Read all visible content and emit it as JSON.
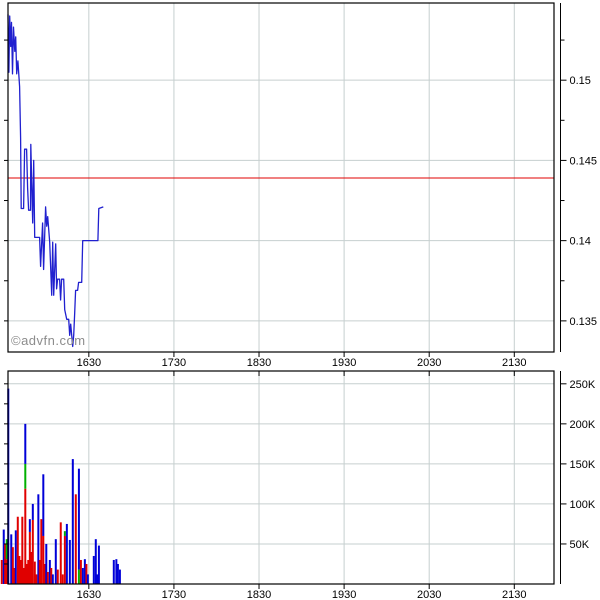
{
  "watermark": "©advfn.com",
  "colors": {
    "background": "#ffffff",
    "border": "#000000",
    "grid": "#c6cfcf",
    "price_line": "#2020cf",
    "prev_close_line": "#e00000",
    "buy": "#0000d8",
    "sell": "#e00000",
    "neutral": "#00b000",
    "watermark_color": "#8c8c8c",
    "label": "#000000"
  },
  "chart_data": [
    {
      "type": "line",
      "name": "intraday-price",
      "title": "",
      "legend": "off",
      "grid": "on",
      "x_axis": {
        "unit": "time-of-day",
        "tick_labels": [
          "1630",
          "1730",
          "1830",
          "1930",
          "2030",
          "2130"
        ],
        "tick_minutes": [
          990,
          1050,
          1110,
          1170,
          1230,
          1290
        ],
        "range_minutes": [
          933,
          1318
        ]
      },
      "y_axis": {
        "side": "right",
        "tick_labels": [
          "0.15",
          "0.145",
          "0.14",
          "0.135"
        ],
        "tick_values": [
          0.15,
          0.145,
          0.14,
          0.135
        ],
        "minor_tick_values": [
          0.1525,
          0.1475,
          0.1425,
          0.1375
        ],
        "range": [
          0.13306,
          0.15481
        ]
      },
      "reference_line": {
        "meaning": "previous-close",
        "value": 0.1439,
        "color_key": "prev_close_line"
      },
      "points": [
        [
          933.0,
          0.1541
        ],
        [
          933.6,
          0.1505
        ],
        [
          934.2,
          0.154
        ],
        [
          934.9,
          0.1521
        ],
        [
          935.5,
          0.1536
        ],
        [
          936.2,
          0.1504
        ],
        [
          936.9,
          0.1533
        ],
        [
          937.8,
          0.1518
        ],
        [
          938.4,
          0.1527
        ],
        [
          939.1,
          0.1504
        ],
        [
          940.0,
          0.1512
        ],
        [
          941.2,
          0.1496
        ],
        [
          941.9,
          0.1464
        ],
        [
          942.3,
          0.142
        ],
        [
          944.0,
          0.142
        ],
        [
          944.7,
          0.1457
        ],
        [
          946.1,
          0.1457
        ],
        [
          946.8,
          0.1433
        ],
        [
          947.5,
          0.1419
        ],
        [
          948.9,
          0.1419
        ],
        [
          949.1,
          0.146
        ],
        [
          950.4,
          0.1411
        ],
        [
          951.1,
          0.145
        ],
        [
          951.8,
          0.1402
        ],
        [
          955.3,
          0.1402
        ],
        [
          956.0,
          0.1384
        ],
        [
          957.4,
          0.1411
        ],
        [
          958.1,
          0.1382
        ],
        [
          959.5,
          0.1421
        ],
        [
          960.3,
          0.1409
        ],
        [
          961.0,
          0.1415
        ],
        [
          962.4,
          0.1399
        ],
        [
          963.8,
          0.1366
        ],
        [
          964.5,
          0.1399
        ],
        [
          965.2,
          0.1366
        ],
        [
          966.6,
          0.1398
        ],
        [
          967.3,
          0.137
        ],
        [
          968.0,
          0.1376
        ],
        [
          969.4,
          0.1376
        ],
        [
          970.1,
          0.1363
        ],
        [
          970.8,
          0.1376
        ],
        [
          972.3,
          0.1376
        ],
        [
          973.0,
          0.1357
        ],
        [
          974.4,
          0.1351
        ],
        [
          975.8,
          0.1351
        ],
        [
          976.5,
          0.1341
        ],
        [
          977.2,
          0.1348
        ],
        [
          977.9,
          0.1341
        ],
        [
          978.6,
          0.1334
        ],
        [
          979.3,
          0.1341
        ],
        [
          980.0,
          0.1355
        ],
        [
          980.7,
          0.1369
        ],
        [
          982.1,
          0.1369
        ],
        [
          982.8,
          0.1374
        ],
        [
          985.0,
          0.1374
        ],
        [
          985.7,
          0.14
        ],
        [
          996.4,
          0.14
        ],
        [
          997.0,
          0.142
        ],
        [
          1000.2,
          0.1421
        ]
      ]
    },
    {
      "type": "bar",
      "name": "volume",
      "grid": "on",
      "x_axis": {
        "unit": "time-of-day",
        "tick_labels": [
          "1630",
          "1730",
          "1830",
          "1930",
          "2030",
          "2130"
        ],
        "tick_minutes": [
          990,
          1050,
          1110,
          1170,
          1230,
          1290
        ],
        "range_minutes": [
          933,
          1318
        ]
      },
      "y_axis": {
        "side": "right",
        "tick_labels": [
          "250K",
          "200K",
          "150K",
          "100K",
          "50K"
        ],
        "tick_values": [
          250000,
          200000,
          150000,
          100000,
          50000
        ],
        "minor_step": 25000,
        "range": [
          0,
          266000
        ]
      },
      "bars": [
        {
          "t": 928.6,
          "segments": [
            [
              "sell",
              30000
            ]
          ]
        },
        {
          "t": 930.0,
          "segments": [
            [
              "buy",
              68000
            ]
          ]
        },
        {
          "t": 931.0,
          "segments": [
            [
              "sell",
              50000
            ]
          ]
        },
        {
          "t": 932.1,
          "segments": [
            [
              "sell",
              31000
            ],
            [
              "neutral",
              25000
            ]
          ]
        },
        {
          "t": 933.2,
          "segments": [
            [
              "buy",
              244000
            ]
          ]
        },
        {
          "t": 935.3,
          "segments": [
            [
              "buy",
              62000
            ]
          ]
        },
        {
          "t": 936.4,
          "segments": [
            [
              "sell",
              46000
            ]
          ]
        },
        {
          "t": 937.4,
          "segments": [
            [
              "sell",
              20000
            ]
          ]
        },
        {
          "t": 938.5,
          "segments": [
            [
              "buy",
              67000
            ]
          ]
        },
        {
          "t": 939.9,
          "segments": [
            [
              "sell",
              84000
            ]
          ]
        },
        {
          "t": 941.0,
          "segments": [
            [
              "sell",
              35000
            ]
          ]
        },
        {
          "t": 942.0,
          "segments": [
            [
              "sell",
              30000
            ]
          ]
        },
        {
          "t": 943.1,
          "segments": [
            [
              "sell",
              84000
            ]
          ]
        },
        {
          "t": 944.1,
          "segments": [
            [
              "sell",
              20000
            ]
          ]
        },
        {
          "t": 945.2,
          "segments": [
            [
              "sell",
              119000
            ],
            [
              "neutral",
              31000
            ],
            [
              "buy",
              50000
            ]
          ]
        },
        {
          "t": 946.2,
          "segments": [
            [
              "sell",
              25000
            ]
          ]
        },
        {
          "t": 947.3,
          "segments": [
            [
              "sell",
              30000
            ]
          ]
        },
        {
          "t": 948.4,
          "segments": [
            [
              "sell",
              65000
            ],
            [
              "buy",
              16000
            ]
          ]
        },
        {
          "t": 949.4,
          "segments": [
            [
              "sell",
              40000
            ]
          ]
        },
        {
          "t": 950.5,
          "segments": [
            [
              "sell",
              80000
            ],
            [
              "buy",
              20000
            ]
          ]
        },
        {
          "t": 951.9,
          "segments": [
            [
              "sell",
              28000
            ]
          ]
        },
        {
          "t": 953.0,
          "segments": [
            [
              "sell",
              12000
            ]
          ]
        },
        {
          "t": 954.4,
          "segments": [
            [
              "buy",
              112000
            ]
          ]
        },
        {
          "t": 955.4,
          "segments": [
            [
              "sell",
              30000
            ]
          ]
        },
        {
          "t": 956.5,
          "segments": [
            [
              "sell",
              81000
            ]
          ]
        },
        {
          "t": 957.9,
          "segments": [
            [
              "sell",
              60000
            ],
            [
              "buy",
              77000
            ]
          ]
        },
        {
          "t": 959.0,
          "segments": [
            [
              "sell",
              25000
            ]
          ]
        },
        {
          "t": 960.0,
          "segments": [
            [
              "buy",
              50000
            ]
          ]
        },
        {
          "t": 961.1,
          "segments": [
            [
              "sell",
              15000
            ]
          ]
        },
        {
          "t": 962.5,
          "segments": [
            [
              "buy",
              30000
            ]
          ]
        },
        {
          "t": 963.5,
          "segments": [
            [
              "sell",
              20000
            ]
          ]
        },
        {
          "t": 964.6,
          "segments": [
            [
              "buy",
              12000
            ]
          ]
        },
        {
          "t": 966.7,
          "segments": [
            [
              "buy",
              56000
            ]
          ]
        },
        {
          "t": 968.1,
          "segments": [
            [
              "sell",
              18000
            ]
          ]
        },
        {
          "t": 970.2,
          "segments": [
            [
              "sell",
              77000
            ]
          ]
        },
        {
          "t": 971.6,
          "segments": [
            [
              "sell",
              12000
            ]
          ]
        },
        {
          "t": 973.1,
          "segments": [
            [
              "sell",
              60000
            ],
            [
              "neutral",
              6000
            ]
          ]
        },
        {
          "t": 974.5,
          "segments": [
            [
              "buy",
              75000
            ]
          ]
        },
        {
          "t": 976.6,
          "segments": [
            [
              "buy",
              55000
            ]
          ]
        },
        {
          "t": 978.7,
          "segments": [
            [
              "buy",
              156000
            ]
          ]
        },
        {
          "t": 980.8,
          "segments": [
            [
              "sell",
              112000
            ]
          ]
        },
        {
          "t": 983.0,
          "segments": [
            [
              "neutral",
              18000
            ],
            [
              "buy",
              126000
            ]
          ]
        },
        {
          "t": 984.4,
          "segments": [
            [
              "sell",
              30000
            ]
          ]
        },
        {
          "t": 985.8,
          "segments": [
            [
              "buy",
              20000
            ]
          ]
        },
        {
          "t": 987.2,
          "segments": [
            [
              "buy",
              31000
            ]
          ]
        },
        {
          "t": 988.3,
          "segments": [
            [
              "sell",
              25000
            ]
          ]
        },
        {
          "t": 989.3,
          "segments": [
            [
              "buy",
              12000
            ]
          ]
        },
        {
          "t": 993.5,
          "segments": [
            [
              "buy",
              35000
            ]
          ]
        },
        {
          "t": 994.9,
          "segments": [
            [
              "buy",
              56000
            ]
          ]
        },
        {
          "t": 996.0,
          "segments": [
            [
              "buy",
              12000
            ]
          ]
        },
        {
          "t": 997.1,
          "segments": [
            [
              "buy",
              48000
            ]
          ]
        },
        {
          "t": 1007.6,
          "segments": [
            [
              "buy",
              30000
            ]
          ]
        },
        {
          "t": 1009.4,
          "segments": [
            [
              "buy",
              31000
            ]
          ]
        },
        {
          "t": 1010.5,
          "segments": [
            [
              "buy",
              25000
            ]
          ]
        },
        {
          "t": 1011.9,
          "segments": [
            [
              "buy",
              18000
            ]
          ]
        }
      ]
    }
  ]
}
